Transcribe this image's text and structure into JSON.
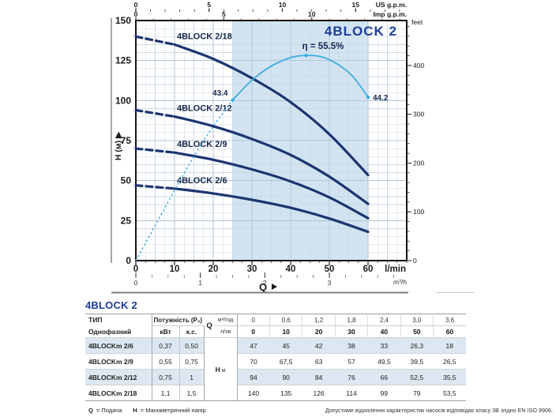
{
  "chart_data": {
    "type": "line",
    "title": "4BLOCK 2",
    "x_axis_bottom": {
      "label": "l/min",
      "ticks": [
        0,
        10,
        20,
        30,
        40,
        50,
        60
      ],
      "range": [
        0,
        70
      ]
    },
    "x_axis_m3h": {
      "label": "m³/h",
      "ticks": [
        0,
        1,
        2,
        3
      ]
    },
    "x_axis_us_gpm": {
      "label": "US g.p.m.",
      "ticks": [
        0,
        5,
        10,
        15
      ]
    },
    "x_axis_imp_gpm": {
      "label": "Imp g.p.m.",
      "ticks": [
        0,
        5,
        10
      ]
    },
    "y_axis_left": {
      "label": "H (м)",
      "ticks": [
        0,
        25,
        50,
        75,
        100,
        125,
        150
      ],
      "range": [
        0,
        150
      ]
    },
    "y_axis_right": {
      "label": "feet",
      "ticks": [
        0,
        100,
        200,
        300,
        400
      ]
    },
    "highlight_band_lmin": [
      25,
      60
    ],
    "q_lmin": [
      0,
      10,
      20,
      30,
      40,
      50,
      60
    ],
    "dashed_until_lmin": 10,
    "series": [
      {
        "name": "4BLOCK 2/18",
        "h_m": [
          140,
          135,
          126,
          114,
          99,
          79,
          53.5
        ]
      },
      {
        "name": "4BLOCK 2/12",
        "h_m": [
          94,
          90,
          84,
          76,
          66,
          52.5,
          35.5
        ]
      },
      {
        "name": "4BLOCK 2/9",
        "h_m": [
          70,
          67.5,
          63,
          57,
          49.5,
          39.5,
          26.5
        ]
      },
      {
        "name": "4BLOCK 2/6",
        "h_m": [
          47,
          45,
          42,
          38,
          33,
          26.3,
          18
        ]
      }
    ],
    "efficiency_curve": {
      "label": "η = 55.5%",
      "peak": {
        "q_lmin": 44,
        "eta_pct": 55.5
      },
      "solid_from_lmin": 25,
      "points": [
        [
          0,
          0
        ],
        [
          5,
          9.5
        ],
        [
          10,
          19
        ],
        [
          15,
          28.2
        ],
        [
          20,
          36.3
        ],
        [
          25,
          43.4
        ],
        [
          30,
          48.8
        ],
        [
          35,
          52.6
        ],
        [
          40,
          54.9
        ],
        [
          44,
          55.5
        ],
        [
          48,
          55.1
        ],
        [
          52,
          53.2
        ],
        [
          56,
          49.9
        ],
        [
          60,
          44.2
        ]
      ],
      "annotations": [
        {
          "q_lmin": 25,
          "eta_pct": 43.4,
          "label": "43.4"
        },
        {
          "q_lmin": 60,
          "eta_pct": 44.2,
          "label": "44.2"
        }
      ]
    },
    "colors": {
      "curve": "#1c3570",
      "efficiency": "#3fadde",
      "band": "#d2e4f2",
      "title": "#1d3e98"
    }
  },
  "table": {
    "title": "4BLOCK 2",
    "header": {
      "type": "ТИП",
      "type_sub": "Однофазний",
      "power": "Потужність (P₂)",
      "kw": "кВт",
      "hp": "к.с.",
      "q": "Q",
      "q_unit_top": "м³/год",
      "q_unit_bottom": "л/хв",
      "h": "H",
      "h_unit": "м"
    },
    "q_m3h": [
      "0",
      "0,6",
      "1,2",
      "1,8",
      "2,4",
      "3,0",
      "3,6"
    ],
    "q_lmin": [
      "0",
      "10",
      "20",
      "30",
      "40",
      "50",
      "60"
    ],
    "rows": [
      {
        "name": "4BLOCKm 2/6",
        "kw": "0,37",
        "hp": "0,50",
        "h_m": [
          "47",
          "45",
          "42",
          "38",
          "33",
          "26,3",
          "18"
        ]
      },
      {
        "name": "4BLOCKm 2/9",
        "kw": "0,55",
        "hp": "0,75",
        "h_m": [
          "70",
          "67,5",
          "63",
          "57",
          "49,5",
          "39,5",
          "26,5"
        ]
      },
      {
        "name": "4BLOCKm 2/12",
        "kw": "0,75",
        "hp": "1",
        "h_m": [
          "94",
          "90",
          "84",
          "76",
          "66",
          "52,5",
          "35,5"
        ]
      },
      {
        "name": "4BLOCKm 2/18",
        "kw": "1,1",
        "hp": "1,5",
        "h_m": [
          "140",
          "135",
          "126",
          "114",
          "99",
          "79",
          "53,5"
        ]
      }
    ]
  },
  "footer": {
    "legend": [
      {
        "symbol": "Q",
        "text": "= Подача"
      },
      {
        "symbol": "H",
        "text": "= Манометричний напір"
      }
    ],
    "note": "Допустиме відхилення характеристик насосів відповідає класу 3B згідно EN ISO 9906."
  }
}
